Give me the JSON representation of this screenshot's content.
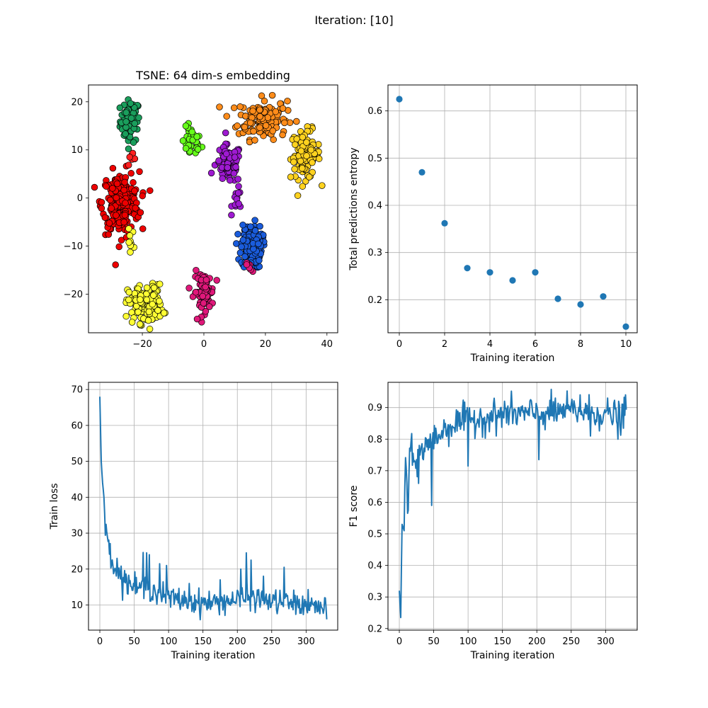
{
  "figure": {
    "suptitle": "Iteration: [10]"
  },
  "chart_data": [
    {
      "type": "scatter",
      "title": "TSNE: 64 dim-s embedding",
      "xlabel": "",
      "ylabel": "",
      "xlim": [
        -37.5,
        43.5
      ],
      "ylim": [
        -28,
        23.5
      ],
      "xticks": [
        -20,
        0,
        20,
        40
      ],
      "yticks": [
        -20,
        -10,
        0,
        10,
        20
      ],
      "grid": false,
      "marker_edge": "#000000",
      "clusters": [
        {
          "color": "#1a9e5c",
          "center": [
            -24,
            16
          ],
          "spread": [
            1.6,
            2.2
          ],
          "count": 70
        },
        {
          "color": "#66ff1a",
          "center": [
            -4,
            11.5
          ],
          "spread": [
            1.6,
            1.6
          ],
          "count": 35
        },
        {
          "color": "#ff8c1a",
          "center": [
            19,
            16.5
          ],
          "spread": [
            4.0,
            2.1
          ],
          "count": 140
        },
        {
          "color": "#ffd21f",
          "center": [
            33,
            9.0
          ],
          "spread": [
            2.4,
            2.5
          ],
          "count": 110
        },
        {
          "color": "#9e1ad1",
          "center": [
            8,
            7.0
          ],
          "spread": [
            2.1,
            2.0
          ],
          "count": 80
        },
        {
          "color": "#9e1ad1",
          "center": [
            11,
            -0.5
          ],
          "spread": [
            0.9,
            1.2
          ],
          "count": 14
        },
        {
          "color": "#ee0000",
          "center": [
            -27,
            -1.0
          ],
          "spread": [
            3.0,
            3.2
          ],
          "count": 220
        },
        {
          "color": "#ff2020",
          "center": [
            -23,
            8.0
          ],
          "spread": [
            1.2,
            0.7
          ],
          "count": 8
        },
        {
          "color": "#1a5cdc",
          "center": [
            15.5,
            -10.0
          ],
          "spread": [
            1.7,
            2.3
          ],
          "count": 140
        },
        {
          "color": "#ffff33",
          "center": [
            -19,
            -22.0
          ],
          "spread": [
            2.8,
            2.0
          ],
          "count": 150
        },
        {
          "color": "#ffff33",
          "center": [
            -24,
            -9.0
          ],
          "spread": [
            0.6,
            1.2
          ],
          "count": 10
        },
        {
          "color": "#e0187a",
          "center": [
            0,
            -19.5
          ],
          "spread": [
            1.6,
            2.0
          ],
          "count": 80
        },
        {
          "color": "#e0187a",
          "center": [
            15,
            -14.5
          ],
          "spread": [
            0.8,
            0.5
          ],
          "count": 8
        }
      ]
    },
    {
      "type": "scatter",
      "title": "",
      "xlabel": "Training iteration",
      "ylabel": "Total predictions entropy",
      "xlim": [
        -0.5,
        10.5
      ],
      "ylim": [
        0.13,
        0.655
      ],
      "xticks": [
        0,
        2,
        4,
        6,
        8,
        10
      ],
      "yticks": [
        0.2,
        0.3,
        0.4,
        0.5,
        0.6
      ],
      "grid": true,
      "color": "#1f77b4",
      "x": [
        0,
        1,
        2,
        3,
        4,
        5,
        6,
        7,
        8,
        9,
        10
      ],
      "y": [
        0.625,
        0.47,
        0.362,
        0.267,
        0.258,
        0.241,
        0.258,
        0.202,
        0.19,
        0.207,
        0.143
      ]
    },
    {
      "type": "line",
      "title": "",
      "xlabel": "Training iteration",
      "ylabel": "Train loss",
      "xlim": [
        -16.5,
        346
      ],
      "ylim": [
        3,
        72
      ],
      "xticks": [
        0,
        50,
        100,
        150,
        200,
        250,
        300
      ],
      "yticks": [
        10,
        20,
        30,
        40,
        50,
        60,
        70
      ],
      "grid": true,
      "color": "#1f77b4",
      "x_range": [
        0,
        330
      ],
      "anchors": [
        [
          0,
          68
        ],
        [
          2,
          50
        ],
        [
          4,
          44
        ],
        [
          6,
          40
        ],
        [
          8,
          31
        ],
        [
          10,
          29
        ],
        [
          15,
          26
        ],
        [
          20,
          21
        ],
        [
          30,
          18
        ],
        [
          40,
          16.5
        ],
        [
          50,
          15
        ],
        [
          60,
          14.5
        ],
        [
          70,
          15
        ],
        [
          80,
          14
        ],
        [
          90,
          13
        ],
        [
          100,
          12
        ],
        [
          130,
          11
        ],
        [
          160,
          10.5
        ],
        [
          200,
          11.5
        ],
        [
          220,
          12
        ],
        [
          250,
          11
        ],
        [
          280,
          10.5
        ],
        [
          330,
          9
        ]
      ],
      "noise": 3.0,
      "spikes": [
        [
          25,
          23
        ],
        [
          63,
          24.6
        ],
        [
          68,
          24.5
        ],
        [
          72,
          24
        ],
        [
          87,
          21.5
        ],
        [
          97,
          21
        ],
        [
          130,
          16
        ],
        [
          175,
          17
        ],
        [
          205,
          20
        ],
        [
          213,
          24.5
        ],
        [
          220,
          22.5
        ],
        [
          238,
          18
        ],
        [
          268,
          20.5
        ],
        [
          327,
          12
        ],
        [
          330,
          6
        ]
      ]
    },
    {
      "type": "line",
      "title": "",
      "xlabel": "Training iteration",
      "ylabel": "F1 score",
      "xlim": [
        -16.5,
        346
      ],
      "ylim": [
        0.195,
        0.98
      ],
      "xticks": [
        0,
        50,
        100,
        150,
        200,
        250,
        300
      ],
      "yticks": [
        0.2,
        0.3,
        0.4,
        0.5,
        0.6,
        0.7,
        0.8,
        0.9
      ],
      "grid": true,
      "color": "#1f77b4",
      "x_range": [
        0,
        330
      ],
      "anchors": [
        [
          0,
          0.32
        ],
        [
          2,
          0.235
        ],
        [
          4,
          0.53
        ],
        [
          7,
          0.51
        ],
        [
          9,
          0.74
        ],
        [
          13,
          0.6
        ],
        [
          16,
          0.77
        ],
        [
          22,
          0.72
        ],
        [
          30,
          0.76
        ],
        [
          40,
          0.78
        ],
        [
          50,
          0.8
        ],
        [
          60,
          0.82
        ],
        [
          80,
          0.85
        ],
        [
          100,
          0.86
        ],
        [
          130,
          0.87
        ],
        [
          160,
          0.88
        ],
        [
          200,
          0.88
        ],
        [
          250,
          0.89
        ],
        [
          300,
          0.88
        ],
        [
          330,
          0.87
        ]
      ],
      "noise": 0.045,
      "spikes": [
        [
          12,
          0.565
        ],
        [
          28,
          0.66
        ],
        [
          47,
          0.59
        ],
        [
          92,
          0.9
        ],
        [
          100,
          0.715
        ],
        [
          153,
          0.92
        ],
        [
          203,
          0.735
        ],
        [
          263,
          0.94
        ],
        [
          278,
          0.81
        ],
        [
          318,
          0.8
        ],
        [
          329,
          0.94
        ]
      ]
    }
  ]
}
